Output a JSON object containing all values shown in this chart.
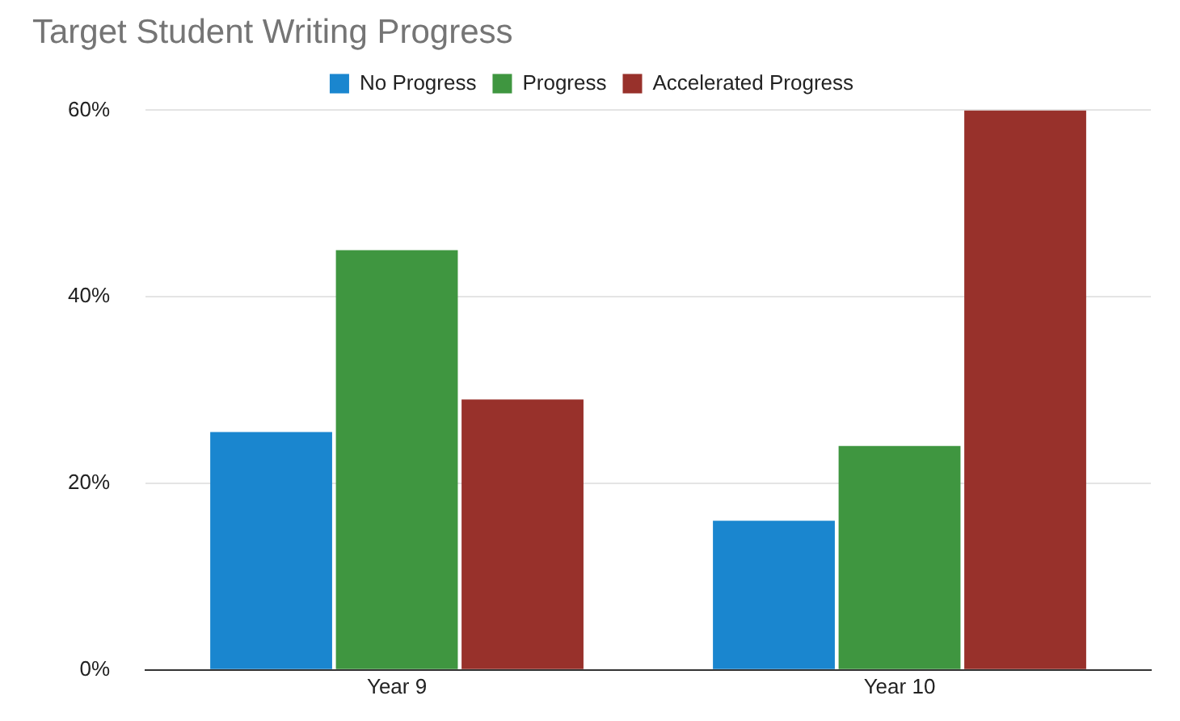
{
  "chart_data": {
    "type": "bar",
    "title": "Target Student Writing Progress",
    "categories": [
      "Year 9",
      "Year 10"
    ],
    "series": [
      {
        "name": "No Progress",
        "color": "#1a86cf",
        "values": [
          25.5,
          16
        ]
      },
      {
        "name": "Progress",
        "color": "#3f9640",
        "values": [
          45,
          24
        ]
      },
      {
        "name": "Accelerated Progress",
        "color": "#98312b",
        "values": [
          29,
          60
        ]
      }
    ],
    "ylim": [
      0,
      60
    ],
    "yticks": [
      {
        "value": 0,
        "label": "0%"
      },
      {
        "value": 20,
        "label": "20%"
      },
      {
        "value": 40,
        "label": "40%"
      },
      {
        "value": 60,
        "label": "60%"
      }
    ],
    "grid": "y",
    "legend": "top"
  }
}
